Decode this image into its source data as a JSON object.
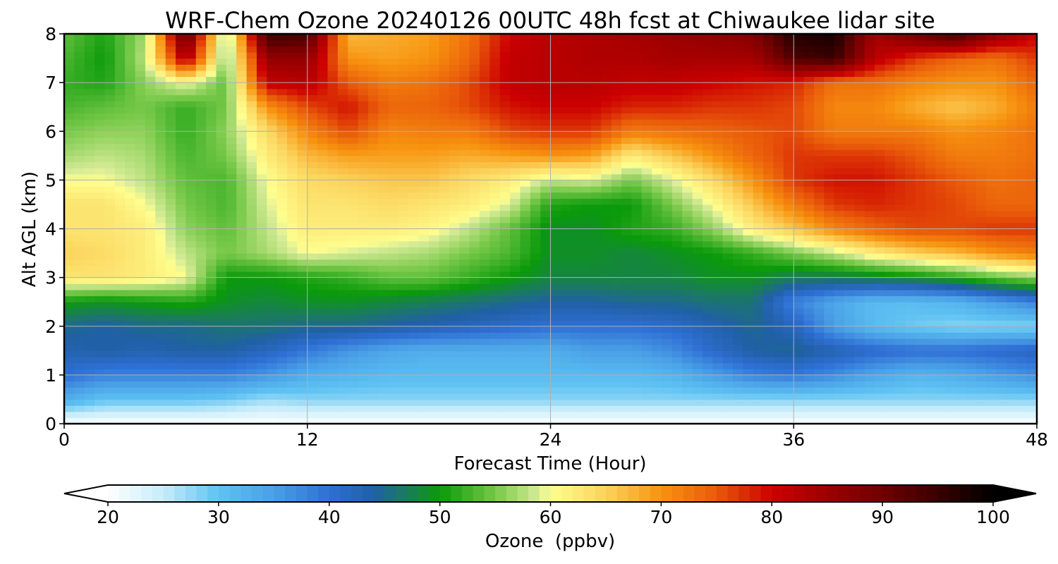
{
  "chart_data": {
    "type": "heatmap",
    "title": "WRF-Chem Ozone  20240126 00UTC 48h fcst at Chiwaukee lidar site",
    "xlabel": "Forecast Time (Hour)",
    "ylabel": "Alt AGL (km)",
    "xlim": [
      0,
      48
    ],
    "ylim": [
      0,
      8
    ],
    "x_ticks": [
      "0",
      "12",
      "24",
      "36",
      "48"
    ],
    "y_ticks": [
      "0",
      "1",
      "2",
      "3",
      "4",
      "5",
      "6",
      "7",
      "8"
    ],
    "grid": true,
    "x": [
      0,
      2,
      4,
      6,
      8,
      10,
      12,
      14,
      16,
      18,
      20,
      22,
      24,
      26,
      28,
      30,
      32,
      34,
      36,
      38,
      40,
      42,
      44,
      46,
      48
    ],
    "y": [
      0,
      0.5,
      1,
      1.5,
      2,
      2.5,
      3,
      3.5,
      4,
      4.5,
      5,
      5.5,
      6,
      6.5,
      7,
      7.5,
      8
    ],
    "values_by_row": [
      [
        20,
        20,
        20,
        20,
        20,
        20,
        20,
        20,
        20,
        20,
        20,
        20,
        20,
        20,
        20,
        20,
        20,
        20,
        20,
        20,
        20,
        20,
        20,
        20,
        20
      ],
      [
        33,
        30,
        30,
        30,
        29,
        27,
        28,
        28,
        28,
        28,
        28,
        28,
        28,
        28,
        28,
        28,
        28,
        28,
        28,
        28,
        28,
        28,
        28,
        28,
        28
      ],
      [
        40,
        38,
        38,
        38,
        38,
        36,
        33,
        32,
        31,
        31,
        31,
        31,
        31,
        31,
        31,
        32,
        35,
        38,
        39,
        37,
        34,
        32,
        33,
        35,
        37
      ],
      [
        43,
        44,
        43,
        44,
        44,
        42,
        39,
        36,
        34,
        33,
        33,
        33,
        33,
        35,
        35,
        37,
        41,
        44,
        45,
        43,
        41,
        40,
        40,
        41,
        42
      ],
      [
        45,
        44,
        45,
        45,
        46,
        46,
        45,
        45,
        44,
        43,
        42,
        41,
        40,
        40,
        40,
        41,
        43,
        45,
        42,
        35,
        31,
        29,
        28,
        28,
        28
      ],
      [
        50,
        49,
        50,
        51,
        49,
        48,
        49,
        49,
        48,
        47,
        46,
        45,
        44,
        44,
        45,
        45,
        46,
        46,
        38,
        34,
        31,
        31,
        32,
        35,
        38
      ],
      [
        63,
        63,
        62,
        60,
        50,
        50,
        51,
        52,
        54,
        54,
        52,
        50,
        48,
        48,
        48,
        48,
        49,
        49,
        47,
        47,
        48,
        49,
        51,
        54,
        56
      ],
      [
        65,
        64,
        62,
        58,
        55,
        57,
        60,
        59,
        58,
        57,
        55,
        53,
        49,
        49,
        48,
        49,
        50,
        52,
        55,
        58,
        62,
        65,
        67,
        70,
        72
      ],
      [
        63,
        63,
        62,
        56,
        54,
        58,
        62,
        62,
        62,
        61,
        58,
        54,
        49,
        49,
        51,
        52,
        56,
        62,
        66,
        71,
        74,
        76,
        76,
        77,
        77
      ],
      [
        63,
        63,
        60,
        55,
        53,
        59,
        63,
        63,
        64,
        63,
        62,
        59,
        51,
        50,
        50,
        55,
        60,
        66,
        72,
        77,
        78,
        77,
        76,
        74,
        74
      ],
      [
        60,
        60,
        58,
        54,
        53,
        60,
        64,
        65,
        66,
        66,
        64,
        62,
        58,
        59,
        55,
        59,
        64,
        70,
        77,
        79,
        79,
        77,
        75,
        73,
        74
      ],
      [
        57,
        58,
        57,
        53,
        55,
        62,
        67,
        69,
        69,
        69,
        68,
        69,
        70,
        69,
        62,
        66,
        70,
        74,
        77,
        77,
        77,
        75,
        72,
        72,
        73
      ],
      [
        55,
        56,
        56,
        52,
        56,
        64,
        71,
        76,
        71,
        72,
        72,
        76,
        77,
        77,
        72,
        73,
        74,
        75,
        76,
        72,
        72,
        72,
        70,
        71,
        73
      ],
      [
        53,
        54,
        55,
        52,
        55,
        70,
        76,
        79,
        74,
        74,
        76,
        79,
        80,
        80,
        78,
        78,
        77,
        77,
        76,
        71,
        71,
        68,
        66,
        68,
        72
      ],
      [
        52,
        51,
        56,
        60,
        54,
        81,
        82,
        75,
        72,
        73,
        76,
        81,
        82,
        82,
        81,
        81,
        80,
        79,
        78,
        73,
        73,
        71,
        70,
        70,
        74
      ],
      [
        53,
        50,
        58,
        84,
        55,
        86,
        86,
        70,
        69,
        70,
        74,
        81,
        82,
        83,
        83,
        84,
        84,
        84,
        93,
        95,
        82,
        77,
        74,
        73,
        77
      ],
      [
        54,
        51,
        57,
        92,
        55,
        95,
        94,
        67,
        68,
        69,
        73,
        80,
        82,
        83,
        84,
        85,
        86,
        88,
        97,
        98,
        84,
        90,
        95,
        86,
        80
      ]
    ],
    "colorbar": {
      "label": "Ozone  (ppbv)",
      "range": [
        20,
        100
      ],
      "ticks": [
        "20",
        "30",
        "40",
        "50",
        "60",
        "70",
        "80",
        "90",
        "100"
      ],
      "extend": "both",
      "color_stops": [
        {
          "v": 20,
          "c": "#ffffff"
        },
        {
          "v": 25,
          "c": "#c6ecfa"
        },
        {
          "v": 30,
          "c": "#5ec2f2"
        },
        {
          "v": 35,
          "c": "#4aa0e6"
        },
        {
          "v": 40,
          "c": "#2f6fd4"
        },
        {
          "v": 44,
          "c": "#2060a6"
        },
        {
          "v": 47,
          "c": "#1a7c5a"
        },
        {
          "v": 50,
          "c": "#0a9a0a"
        },
        {
          "v": 55,
          "c": "#76c848"
        },
        {
          "v": 59,
          "c": "#d8ec98"
        },
        {
          "v": 60,
          "c": "#fefe8e"
        },
        {
          "v": 65,
          "c": "#fbd35c"
        },
        {
          "v": 70,
          "c": "#f7930f"
        },
        {
          "v": 75,
          "c": "#e95a0a"
        },
        {
          "v": 80,
          "c": "#cc0000"
        },
        {
          "v": 85,
          "c": "#9c0000"
        },
        {
          "v": 90,
          "c": "#700000"
        },
        {
          "v": 95,
          "c": "#380000"
        },
        {
          "v": 100,
          "c": "#000000"
        }
      ]
    }
  }
}
